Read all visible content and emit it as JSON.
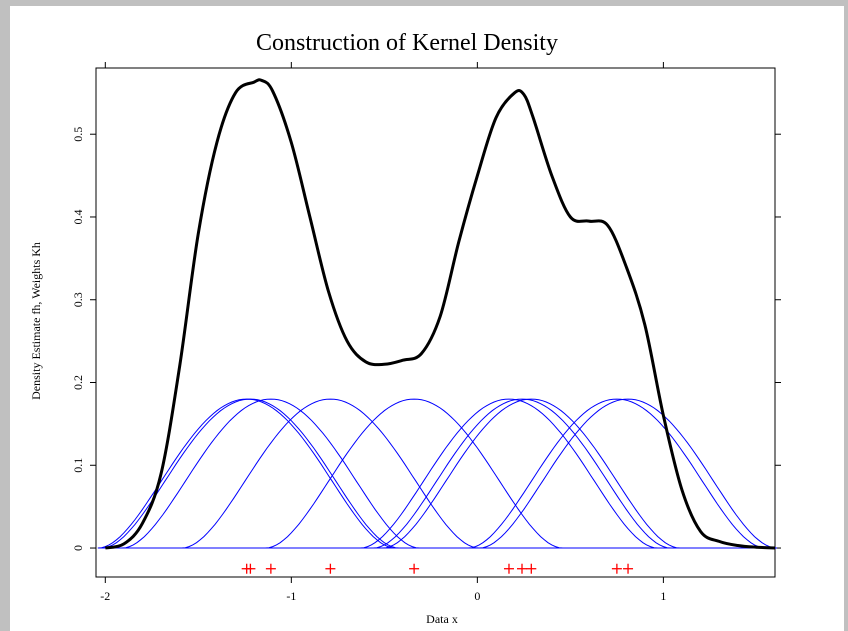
{
  "chart_data": {
    "type": "line",
    "title": "Construction of Kernel Density",
    "xlabel": "Data x",
    "ylabel": "Density Estimate fh, Weights Kh",
    "xlim": [
      -2.05,
      1.6
    ],
    "ylim": [
      -0.035,
      0.58
    ],
    "x_ticks": [
      {
        "value": -2,
        "label": "-2"
      },
      {
        "value": -1,
        "label": "-1"
      },
      {
        "value": 0,
        "label": "0"
      },
      {
        "value": 1,
        "label": "1"
      }
    ],
    "y_ticks": [
      {
        "value": 0,
        "label": "0"
      },
      {
        "value": 0.1,
        "label": "0.1"
      },
      {
        "value": 0.2,
        "label": "0.2"
      },
      {
        "value": 0.3,
        "label": "0.3"
      },
      {
        "value": 0.4,
        "label": "0.4"
      },
      {
        "value": 0.5,
        "label": "0.5"
      }
    ],
    "grid": false,
    "data_points": [
      -1.24,
      -1.22,
      -1.11,
      -0.79,
      -0.34,
      0.17,
      0.24,
      0.29,
      0.75,
      0.81
    ],
    "kernel_bandwidth": 0.2,
    "kernel_support": [
      -0.8,
      0.8
    ],
    "kernel_peak": 0.18,
    "density_estimate": {
      "x": [
        -2.0,
        -1.9,
        -1.8,
        -1.7,
        -1.6,
        -1.5,
        -1.4,
        -1.3,
        -1.2,
        -1.16,
        -1.1,
        -1.0,
        -0.9,
        -0.8,
        -0.7,
        -0.6,
        -0.5,
        -0.4,
        -0.3,
        -0.2,
        -0.1,
        0.0,
        0.1,
        0.2,
        0.25,
        0.3,
        0.4,
        0.5,
        0.6,
        0.7,
        0.8,
        0.9,
        1.0,
        1.1,
        1.2,
        1.3,
        1.4,
        1.5,
        1.6
      ],
      "y": [
        0.0,
        0.005,
        0.03,
        0.09,
        0.22,
        0.38,
        0.49,
        0.55,
        0.563,
        0.565,
        0.552,
        0.49,
        0.4,
        0.31,
        0.25,
        0.225,
        0.222,
        0.227,
        0.235,
        0.28,
        0.37,
        0.45,
        0.52,
        0.55,
        0.548,
        0.52,
        0.45,
        0.4,
        0.395,
        0.39,
        0.34,
        0.27,
        0.16,
        0.07,
        0.02,
        0.008,
        0.003,
        0.001,
        0.0
      ]
    },
    "series": [
      {
        "name": "",
        "color": "#000000",
        "style": "density"
      },
      {
        "name": "",
        "color": "#0000ff",
        "style": "kernels"
      },
      {
        "name": "",
        "color": "#ff0000",
        "style": "rug"
      }
    ]
  }
}
